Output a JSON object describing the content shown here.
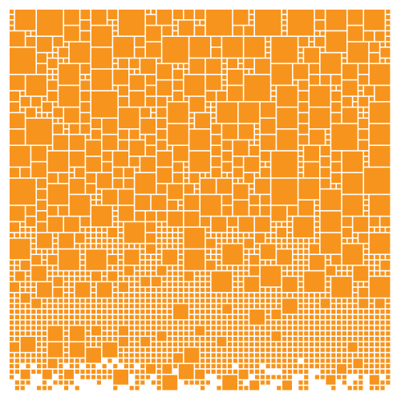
{
  "artwork": {
    "kind": "square-packing-mosaic",
    "fill_color": "#F7941D",
    "background_color": "#FFFFFF",
    "seed": 20240611
  }
}
